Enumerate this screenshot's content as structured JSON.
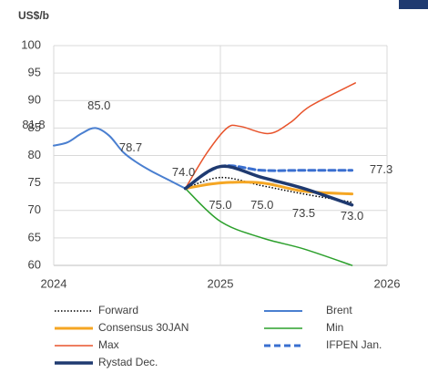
{
  "chart_data": {
    "type": "line",
    "title": "US$/b",
    "xlim": [
      2024,
      2026
    ],
    "xticks": [
      2024,
      2025,
      2026
    ],
    "ylim": [
      60,
      100
    ],
    "yticks": [
      60,
      65,
      70,
      75,
      80,
      85,
      90,
      95,
      100
    ],
    "grid": true,
    "legend": "bottom",
    "series": [
      {
        "name": "Forward",
        "color": "#000000",
        "line_style": "dotted",
        "line_width": 1.5,
        "x": [
          2024.79,
          2025.0,
          2025.25,
          2025.5,
          2025.79
        ],
        "values": [
          74.0,
          76.0,
          74.5,
          73.0,
          71.5
        ]
      },
      {
        "name": "Brent",
        "color": "#4a7fd0",
        "line_style": "solid",
        "line_width": 2,
        "x": [
          2024.0,
          2024.083,
          2024.167,
          2024.25,
          2024.333,
          2024.417,
          2024.5,
          2024.583,
          2024.667,
          2024.75,
          2024.79
        ],
        "values": [
          81.8,
          82.4,
          84.0,
          85.0,
          83.6,
          80.6,
          78.7,
          77.2,
          75.9,
          74.6,
          74.0
        ],
        "value_labels": [
          "81.8",
          null,
          null,
          "85.0",
          null,
          null,
          "78.7",
          null,
          null,
          null,
          "74.0"
        ]
      },
      {
        "name": "Consensus 30JAN",
        "color": "#f5a623",
        "line_style": "solid",
        "line_width": 3,
        "x": [
          2024.79,
          2025.0,
          2025.25,
          2025.5,
          2025.79
        ],
        "values": [
          74.0,
          75.0,
          75.0,
          73.5,
          73.0
        ],
        "value_labels": [
          null,
          "75.0",
          "75.0",
          "73.5",
          "73.0"
        ]
      },
      {
        "name": "Min",
        "color": "#2ca02c",
        "line_style": "solid",
        "line_width": 1.5,
        "x": [
          2024.79,
          2025.0,
          2025.25,
          2025.5,
          2025.79
        ],
        "values": [
          74.0,
          68.0,
          65.0,
          63.0,
          60.0
        ]
      },
      {
        "name": "Max",
        "color": "#e8542c",
        "line_style": "solid",
        "line_width": 1.5,
        "x": [
          2024.79,
          2024.92,
          2025.04,
          2025.12,
          2025.29,
          2025.42,
          2025.54,
          2025.81
        ],
        "values": [
          74.0,
          80.5,
          85.0,
          85.3,
          84.0,
          86.0,
          89.0,
          93.2
        ]
      },
      {
        "name": "IFPEN Jan.",
        "color": "#3a6fd0",
        "line_style": "dashed",
        "line_width": 3,
        "x": [
          2024.79,
          2025.0,
          2025.25,
          2025.5,
          2025.79
        ],
        "values": [
          74.0,
          78.0,
          77.3,
          77.3,
          77.3
        ],
        "value_labels": [
          null,
          null,
          null,
          null,
          "77.3"
        ]
      },
      {
        "name": "Rystad Dec.",
        "color": "#1f3a70",
        "line_style": "solid",
        "line_width": 3.5,
        "x": [
          2024.79,
          2025.0,
          2025.25,
          2025.5,
          2025.79
        ],
        "values": [
          74.0,
          78.0,
          76.0,
          74.0,
          71.0
        ]
      }
    ]
  }
}
